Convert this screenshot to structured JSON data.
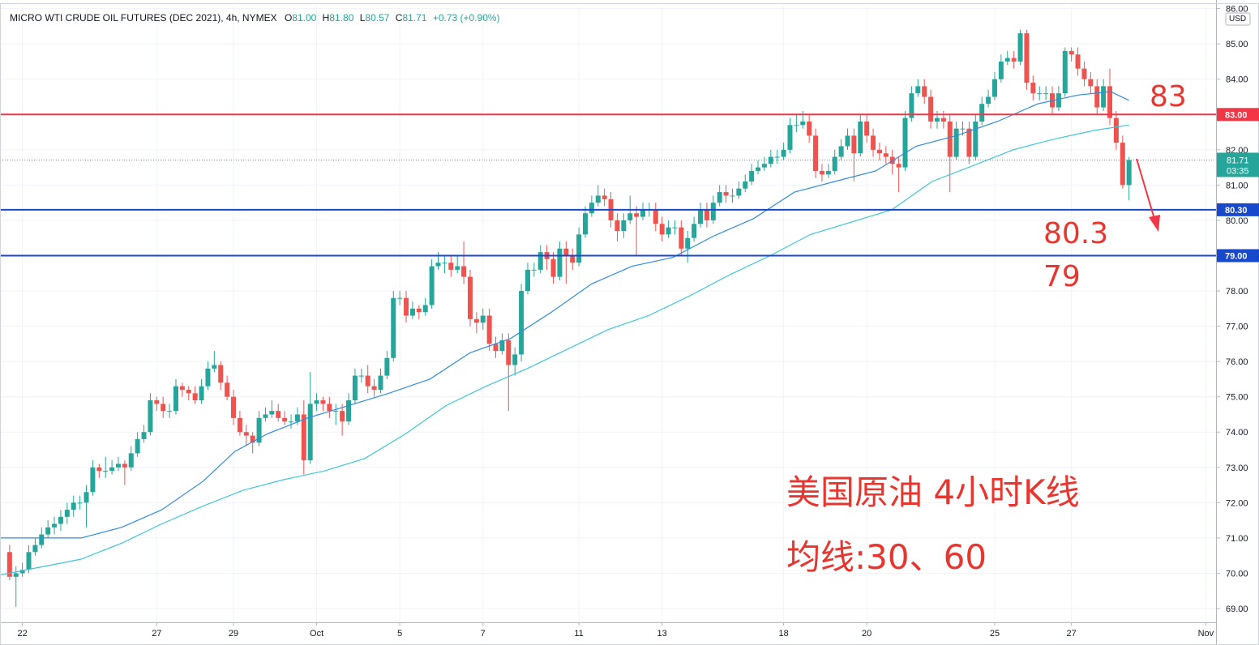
{
  "chart_data": {
    "type": "candlestick",
    "title": "MICRO WTI CRUDE OIL FUTURES (DEC 2021), 4h, NYMEX",
    "ohlc_legend": [
      {
        "label": "O",
        "value": "81.00"
      },
      {
        "label": "H",
        "value": "81.80"
      },
      {
        "label": "L",
        "value": "80.57"
      },
      {
        "label": "C",
        "value": "81.71"
      }
    ],
    "change": "+0.73 (+0.90%)",
    "currency": "USD",
    "up_color": "#26a69a",
    "down_color": "#ef5350",
    "open": [
      70.6,
      69.9,
      70.0,
      70.1,
      70.6,
      70.8,
      71.1,
      71.3,
      71.4,
      71.6,
      71.8,
      72.0,
      72.0,
      72.3,
      73.0,
      72.9,
      72.9,
      73.0,
      73.1,
      73.0,
      73.4,
      73.8,
      74.0,
      74.9,
      74.8,
      74.6,
      74.6,
      75.3,
      75.2,
      75.1,
      74.9,
      75.3,
      75.8,
      75.9,
      75.4,
      75.0,
      74.4,
      74.0,
      73.9,
      73.7,
      74.4,
      74.5,
      74.6,
      74.4,
      74.3,
      74.3,
      74.5,
      73.2,
      74.8,
      74.9,
      74.8,
      74.6,
      74.6,
      74.3,
      74.9,
      75.6,
      75.6,
      75.3,
      75.2,
      75.6,
      76.1,
      77.8,
      77.8,
      77.3,
      77.5,
      77.4,
      77.6,
      78.7,
      78.8,
      78.8,
      78.6,
      78.7,
      78.4,
      77.2,
      77.1,
      77.3,
      76.5,
      76.3,
      76.6,
      75.9,
      76.2,
      78.0,
      78.6,
      78.6,
      79.1,
      78.9,
      78.4,
      79.2,
      79.0,
      78.8,
      79.6,
      80.2,
      80.5,
      80.7,
      80.6,
      80.0,
      79.7,
      80.0,
      80.2,
      80.1,
      80.3,
      80.3,
      79.9,
      79.6,
      79.8,
      79.8,
      79.2,
      79.5,
      79.9,
      80.3,
      80.0,
      80.5,
      80.8,
      80.7,
      80.7,
      80.9,
      81.1,
      81.4,
      81.5,
      81.6,
      81.8,
      81.8,
      82.0,
      82.7,
      82.7,
      82.8,
      82.4,
      81.4,
      81.3,
      81.4,
      81.8,
      82.1,
      82.4,
      81.9,
      82.8,
      82.4,
      82.0,
      81.9,
      81.8,
      81.6,
      81.5,
      82.9,
      83.6,
      83.8,
      83.5,
      82.8,
      82.9,
      82.8,
      81.8,
      82.6,
      82.6,
      81.8,
      82.8,
      83.3,
      83.5,
      84.0,
      84.5,
      84.6,
      84.5,
      85.3,
      83.9,
      83.6,
      83.6,
      83.6,
      83.2,
      83.6,
      84.8,
      84.7,
      84.3,
      84.0,
      83.8,
      83.2,
      83.8,
      82.9,
      82.2,
      81.0
    ],
    "high": [
      70.8,
      70.2,
      70.3,
      70.8,
      71.0,
      71.3,
      71.5,
      71.6,
      71.8,
      72.0,
      72.2,
      72.2,
      72.5,
      73.2,
      73.1,
      73.3,
      73.2,
      73.3,
      73.2,
      73.6,
      74.0,
      74.2,
      75.1,
      75.0,
      75.0,
      74.8,
      75.5,
      75.4,
      75.3,
      75.3,
      75.5,
      76.0,
      76.3,
      76.0,
      75.6,
      75.2,
      74.6,
      74.2,
      74.0,
      74.6,
      74.7,
      74.9,
      74.8,
      74.6,
      74.5,
      74.7,
      74.9,
      75.7,
      75.1,
      75.0,
      75.0,
      74.8,
      74.8,
      75.1,
      75.8,
      75.8,
      75.9,
      75.5,
      75.8,
      76.3,
      78.0,
      78.0,
      78.0,
      77.7,
      77.6,
      77.8,
      78.9,
      79.1,
      79.0,
      79.0,
      79.0,
      79.4,
      78.6,
      77.4,
      77.5,
      77.5,
      76.7,
      76.8,
      76.8,
      76.4,
      78.2,
      78.8,
      78.8,
      79.3,
      79.3,
      79.1,
      79.4,
      79.4,
      79.2,
      79.8,
      80.4,
      80.7,
      81.0,
      80.9,
      80.8,
      80.2,
      80.2,
      80.7,
      80.4,
      80.5,
      80.5,
      80.5,
      80.1,
      80.0,
      80.0,
      80.0,
      79.7,
      80.1,
      80.5,
      80.5,
      80.7,
      81.0,
      81.0,
      80.9,
      81.1,
      81.3,
      81.6,
      81.7,
      81.8,
      82.0,
      82.0,
      82.2,
      82.9,
      83.0,
      83.1,
      83.0,
      82.6,
      81.6,
      81.6,
      82.0,
      82.3,
      82.6,
      82.6,
      83.0,
      83.0,
      82.6,
      82.2,
      82.1,
      82.0,
      81.8,
      83.1,
      83.8,
      84.0,
      84.0,
      83.7,
      83.1,
      83.1,
      83.0,
      82.8,
      82.8,
      82.8,
      83.0,
      83.5,
      83.7,
      84.2,
      84.7,
      84.8,
      84.8,
      85.4,
      85.4,
      84.1,
      83.8,
      83.8,
      83.8,
      83.8,
      84.9,
      84.9,
      84.9,
      84.5,
      84.2,
      84.0,
      84.0,
      84.3,
      83.1,
      82.4,
      81.8
    ],
    "low": [
      69.8,
      69.05,
      69.9,
      70.0,
      70.5,
      70.7,
      71.0,
      71.1,
      71.2,
      71.4,
      71.6,
      71.8,
      71.3,
      72.2,
      72.7,
      72.7,
      72.8,
      72.9,
      72.5,
      72.9,
      73.3,
      73.7,
      73.9,
      74.6,
      74.4,
      74.4,
      74.5,
      75.0,
      74.9,
      74.8,
      74.8,
      75.2,
      75.7,
      75.2,
      74.9,
      74.2,
      73.9,
      73.6,
      73.4,
      73.6,
      74.3,
      74.4,
      74.3,
      74.2,
      74.1,
      74.2,
      72.8,
      73.1,
      74.6,
      74.6,
      74.4,
      74.2,
      73.9,
      74.2,
      74.8,
      75.4,
      75.1,
      75.0,
      75.1,
      75.5,
      76.0,
      77.6,
      77.1,
      77.2,
      77.2,
      77.3,
      77.5,
      78.6,
      78.5,
      78.4,
      78.5,
      78.2,
      77.0,
      76.8,
      76.9,
      76.3,
      76.1,
      76.2,
      74.6,
      75.6,
      76.0,
      77.9,
      78.4,
      78.5,
      78.6,
      78.2,
      78.3,
      78.2,
      78.6,
      78.7,
      79.5,
      80.1,
      80.4,
      80.4,
      79.8,
      79.4,
      79.5,
      79.9,
      79.0,
      80.0,
      80.1,
      79.7,
      79.4,
      79.5,
      79.6,
      79.0,
      78.8,
      79.4,
      79.8,
      79.8,
      79.9,
      80.4,
      80.5,
      80.5,
      80.6,
      80.8,
      81.0,
      81.3,
      81.4,
      81.5,
      81.6,
      81.7,
      81.9,
      82.5,
      82.6,
      82.2,
      81.2,
      81.1,
      81.2,
      81.3,
      81.7,
      82.0,
      81.1,
      81.8,
      82.2,
      81.8,
      81.7,
      81.6,
      81.3,
      80.8,
      81.4,
      82.8,
      83.5,
      83.3,
      82.6,
      82.6,
      82.6,
      80.8,
      81.7,
      82.4,
      81.6,
      81.7,
      82.7,
      83.2,
      83.4,
      83.9,
      84.4,
      84.3,
      84.4,
      83.7,
      83.4,
      83.4,
      83.4,
      83.0,
      83.1,
      83.5,
      84.5,
      84.1,
      83.8,
      83.6,
      83.0,
      83.1,
      82.7,
      82.0,
      80.9,
      80.57
    ],
    "close": [
      69.9,
      70.0,
      70.1,
      70.6,
      70.8,
      71.1,
      71.3,
      71.4,
      71.6,
      71.8,
      72.0,
      72.0,
      72.3,
      73.0,
      72.9,
      72.9,
      73.0,
      73.1,
      73.0,
      73.4,
      73.8,
      74.0,
      74.9,
      74.8,
      74.6,
      74.6,
      75.3,
      75.2,
      75.1,
      74.9,
      75.3,
      75.8,
      75.9,
      75.4,
      75.0,
      74.4,
      74.0,
      73.9,
      73.7,
      74.4,
      74.5,
      74.6,
      74.4,
      74.3,
      74.3,
      74.5,
      73.2,
      74.8,
      74.9,
      74.8,
      74.6,
      74.6,
      74.3,
      74.9,
      75.6,
      75.6,
      75.3,
      75.2,
      75.6,
      76.1,
      77.8,
      77.8,
      77.3,
      77.5,
      77.4,
      77.6,
      78.7,
      78.8,
      78.8,
      78.6,
      78.7,
      78.4,
      77.2,
      77.1,
      77.3,
      76.5,
      76.3,
      76.6,
      75.9,
      76.2,
      78.0,
      78.6,
      78.6,
      79.1,
      78.9,
      78.4,
      79.2,
      79.0,
      78.8,
      79.6,
      80.2,
      80.5,
      80.7,
      80.6,
      80.0,
      79.7,
      80.0,
      80.2,
      80.1,
      80.3,
      80.3,
      79.9,
      79.6,
      79.8,
      79.8,
      79.2,
      79.5,
      79.9,
      80.3,
      80.0,
      80.5,
      80.8,
      80.7,
      80.7,
      80.9,
      81.1,
      81.4,
      81.5,
      81.6,
      81.8,
      81.8,
      82.0,
      82.7,
      82.7,
      82.8,
      82.4,
      81.4,
      81.3,
      81.4,
      81.8,
      82.1,
      82.4,
      81.9,
      82.8,
      82.4,
      82.0,
      81.9,
      81.8,
      81.6,
      81.5,
      82.9,
      83.6,
      83.8,
      83.5,
      82.8,
      82.9,
      82.8,
      81.8,
      82.6,
      82.6,
      81.8,
      82.8,
      83.3,
      83.5,
      84.0,
      84.5,
      84.6,
      84.5,
      85.3,
      83.9,
      83.6,
      83.6,
      83.6,
      83.2,
      83.6,
      84.8,
      84.7,
      84.3,
      84.0,
      83.8,
      83.2,
      83.8,
      82.9,
      82.2,
      81.0,
      81.71
    ],
    "lines": [
      {
        "color": "#2f8be0",
        "x": [
          -1.5,
          11.2,
          17.5,
          23.8,
          30.2,
          35.2,
          40.3,
          46.6,
          53.0,
          59.3,
          65.7,
          72.0,
          78.3,
          84.7,
          91.0,
          97.3,
          103.7,
          110.0,
          116.3,
          122.7,
          129.0,
          135.4,
          141.7,
          148.0,
          154.4,
          160.7,
          167.0,
          172.1,
          175
        ],
        "values": [
          71.0,
          71.0,
          71.3,
          71.8,
          72.6,
          73.45,
          73.95,
          74.4,
          74.75,
          75.1,
          75.5,
          76.25,
          76.65,
          77.4,
          78.2,
          78.7,
          78.95,
          79.55,
          80.05,
          80.8,
          81.1,
          81.4,
          82.1,
          82.4,
          82.8,
          83.3,
          83.55,
          83.65,
          83.4
        ]
      },
      {
        "color": "#3fc4dd",
        "x": [
          -1.5,
          11.2,
          17.5,
          23.8,
          30.2,
          36.5,
          42.8,
          49.2,
          55.5,
          61.9,
          68.2,
          74.5,
          80.9,
          87.2,
          93.5,
          99.9,
          106.2,
          112.5,
          118.9,
          125.2,
          131.6,
          137.9,
          144.2,
          150.6,
          156.9,
          163.2,
          169.6,
          175
        ],
        "values": [
          69.95,
          70.4,
          70.85,
          71.4,
          71.9,
          72.35,
          72.65,
          72.9,
          73.25,
          73.95,
          74.75,
          75.3,
          75.8,
          76.35,
          76.9,
          77.3,
          77.85,
          78.45,
          79.0,
          79.6,
          79.95,
          80.3,
          81.1,
          81.55,
          82.0,
          82.3,
          82.55,
          82.7
        ]
      }
    ],
    "levels": [
      {
        "value": 83,
        "label": "83.00",
        "color": "#f23645"
      },
      {
        "value": 80.3,
        "label": "80.30",
        "color": "#1848cc"
      },
      {
        "value": 79,
        "label": "79.00",
        "color": "#1848cc"
      }
    ],
    "last": {
      "value": 81.71,
      "label": "81.71",
      "countdown": "03:35"
    },
    "annotations": [
      "83",
      "80.3",
      "79",
      "美国原油 4小时K线",
      "均线:30、60"
    ],
    "ylim": [
      68.61,
      86.06
    ],
    "yticks": [
      {
        "value": 69,
        "label": "69.00"
      },
      {
        "value": 70,
        "label": "70.00"
      },
      {
        "value": 71,
        "label": "71.00"
      },
      {
        "value": 72,
        "label": "72.00"
      },
      {
        "value": 73,
        "label": "73.00"
      },
      {
        "value": 74,
        "label": "74.00"
      },
      {
        "value": 75,
        "label": "75.00"
      },
      {
        "value": 76,
        "label": "76.00"
      },
      {
        "value": 77,
        "label": "77.00"
      },
      {
        "value": 78,
        "label": "78.00"
      },
      {
        "value": 79,
        "label": "79.00"
      },
      {
        "value": 80,
        "label": "80.00"
      },
      {
        "value": 81,
        "label": "81.00"
      },
      {
        "value": 82,
        "label": "82.00"
      },
      {
        "value": 83,
        "label": "83.00"
      },
      {
        "value": 84,
        "label": "84.00"
      },
      {
        "value": 85,
        "label": "85.00"
      },
      {
        "value": 86,
        "label": "86.00"
      }
    ],
    "xlim": [
      -1.5,
      188.6
    ],
    "xticks": [
      {
        "value": 2,
        "label": "22"
      },
      {
        "value": 23,
        "label": "27"
      },
      {
        "value": 35,
        "label": "29"
      },
      {
        "value": 48,
        "label": "Oct"
      },
      {
        "value": 61,
        "label": "5"
      },
      {
        "value": 74,
        "label": "7"
      },
      {
        "value": 89,
        "label": "11"
      },
      {
        "value": 102,
        "label": "13"
      },
      {
        "value": 121,
        "label": "18"
      },
      {
        "value": 134,
        "label": "20"
      },
      {
        "value": 154,
        "label": "25"
      },
      {
        "value": 166,
        "label": "27"
      },
      {
        "value": 187,
        "label": "Nov"
      }
    ],
    "grid": true
  }
}
